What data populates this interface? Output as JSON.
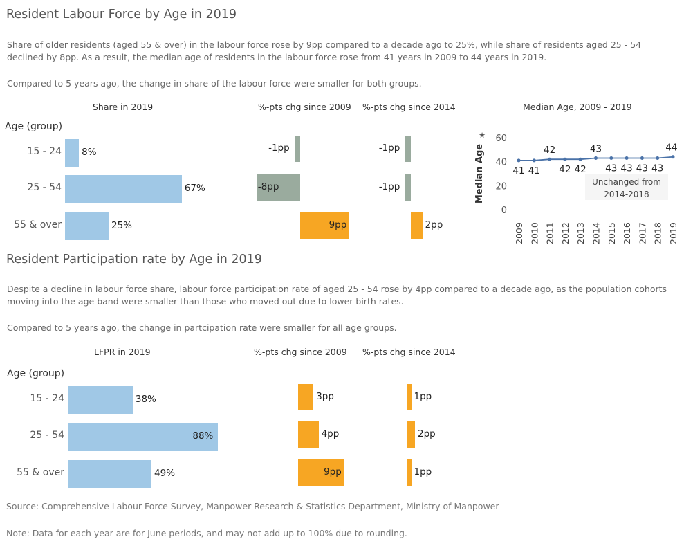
{
  "section1": {
    "title": "Resident Labour Force by Age in 2019",
    "para1": "Share of older residents (aged 55 & over) in the labour force rose by 9pp compared to a decade ago to 25%, while share of residents aged 25 - 54 declined by 8pp. As a result, the median age of residents in the labour force rose from 41 years in 2009 to 44 years in 2019.",
    "para2": "Compared to 5 years ago, the change in share of the labour force were smaller for both groups.",
    "col_share": "Share in 2019",
    "col_chg2009": "%-pts chg since 2009",
    "col_chg2014": "%-pts chg since 2014",
    "col_median": "Median Age, 2009 - 2019",
    "age_header": "Age (group)"
  },
  "section2": {
    "title": "Resident Participation rate by Age in 2019",
    "para1": "Despite a decline in labour force share, labour force participation rate of aged 25 - 54 rose by 4pp compared to a decade ago, as the population cohorts moving into the age band were smaller than those who moved out due to lower birth rates.",
    "para2": "Compared to 5 years ago, the change in partcipation rate were smaller for all age groups.",
    "col_lfpr": "LFPR in 2019",
    "col_chg2009": "%-pts chg since 2009",
    "col_chg2014": "%-pts chg since 2014",
    "age_header": "Age (group)"
  },
  "footer": {
    "source": "Source: Comprehensive Labour Force Survey, Manpower Research & Statistics Department, Ministry of Manpower",
    "note": "Note: Data for each year are for June periods, and may not add up to 100% due to rounding."
  },
  "colors": {
    "share": "#a0c8e6",
    "negative": "#9aab9e",
    "positive": "#f7a623",
    "line": "#4a72a8"
  },
  "chart_data": [
    {
      "type": "bar",
      "orientation": "horizontal",
      "categories": [
        "15 - 24",
        "25 - 54",
        "55 & over"
      ],
      "values": [
        8,
        67,
        25
      ],
      "labels": [
        "8%",
        "67%",
        "25%"
      ],
      "title": "Share in 2019"
    },
    {
      "type": "bar",
      "orientation": "horizontal",
      "categories": [
        "15 - 24",
        "25 - 54",
        "55 & over"
      ],
      "values": [
        -1,
        -8,
        9
      ],
      "labels": [
        "-1pp",
        "-8pp",
        "9pp"
      ],
      "title": "%-pts chg since 2009"
    },
    {
      "type": "bar",
      "orientation": "horizontal",
      "categories": [
        "15 - 24",
        "25 - 54",
        "55 & over"
      ],
      "values": [
        -1,
        -1,
        2
      ],
      "labels": [
        "-1pp",
        "-1pp",
        "2pp"
      ],
      "title": "%-pts chg since 2014"
    },
    {
      "type": "line",
      "title": "Median Age, 2009 - 2019",
      "ylabel": "Median Age",
      "x": [
        "2009",
        "2010",
        "2011",
        "2012",
        "2013",
        "2014",
        "2015",
        "2016",
        "2017",
        "2018",
        "2019"
      ],
      "values": [
        41,
        41,
        42,
        42,
        42,
        43,
        43,
        43,
        43,
        43,
        44
      ],
      "ylim": [
        0,
        60
      ],
      "yticks": [
        "0",
        "20",
        "40",
        "60"
      ],
      "annotation": "Unchanged from\n2014-2018"
    },
    {
      "type": "bar",
      "orientation": "horizontal",
      "categories": [
        "15 - 24",
        "25 - 54",
        "55 & over"
      ],
      "values": [
        38,
        88,
        49
      ],
      "labels": [
        "38%",
        "88%",
        "49%"
      ],
      "title": "LFPR in 2019"
    },
    {
      "type": "bar",
      "orientation": "horizontal",
      "categories": [
        "15 - 24",
        "25 - 54",
        "55 & over"
      ],
      "values": [
        3,
        4,
        9
      ],
      "labels": [
        "3pp",
        "4pp",
        "9pp"
      ],
      "title": "%-pts chg since 2009"
    },
    {
      "type": "bar",
      "orientation": "horizontal",
      "categories": [
        "15 - 24",
        "25 - 54",
        "55 & over"
      ],
      "values": [
        1,
        2,
        1
      ],
      "labels": [
        "1pp",
        "2pp",
        "1pp"
      ],
      "title": "%-pts chg since 2014"
    }
  ]
}
